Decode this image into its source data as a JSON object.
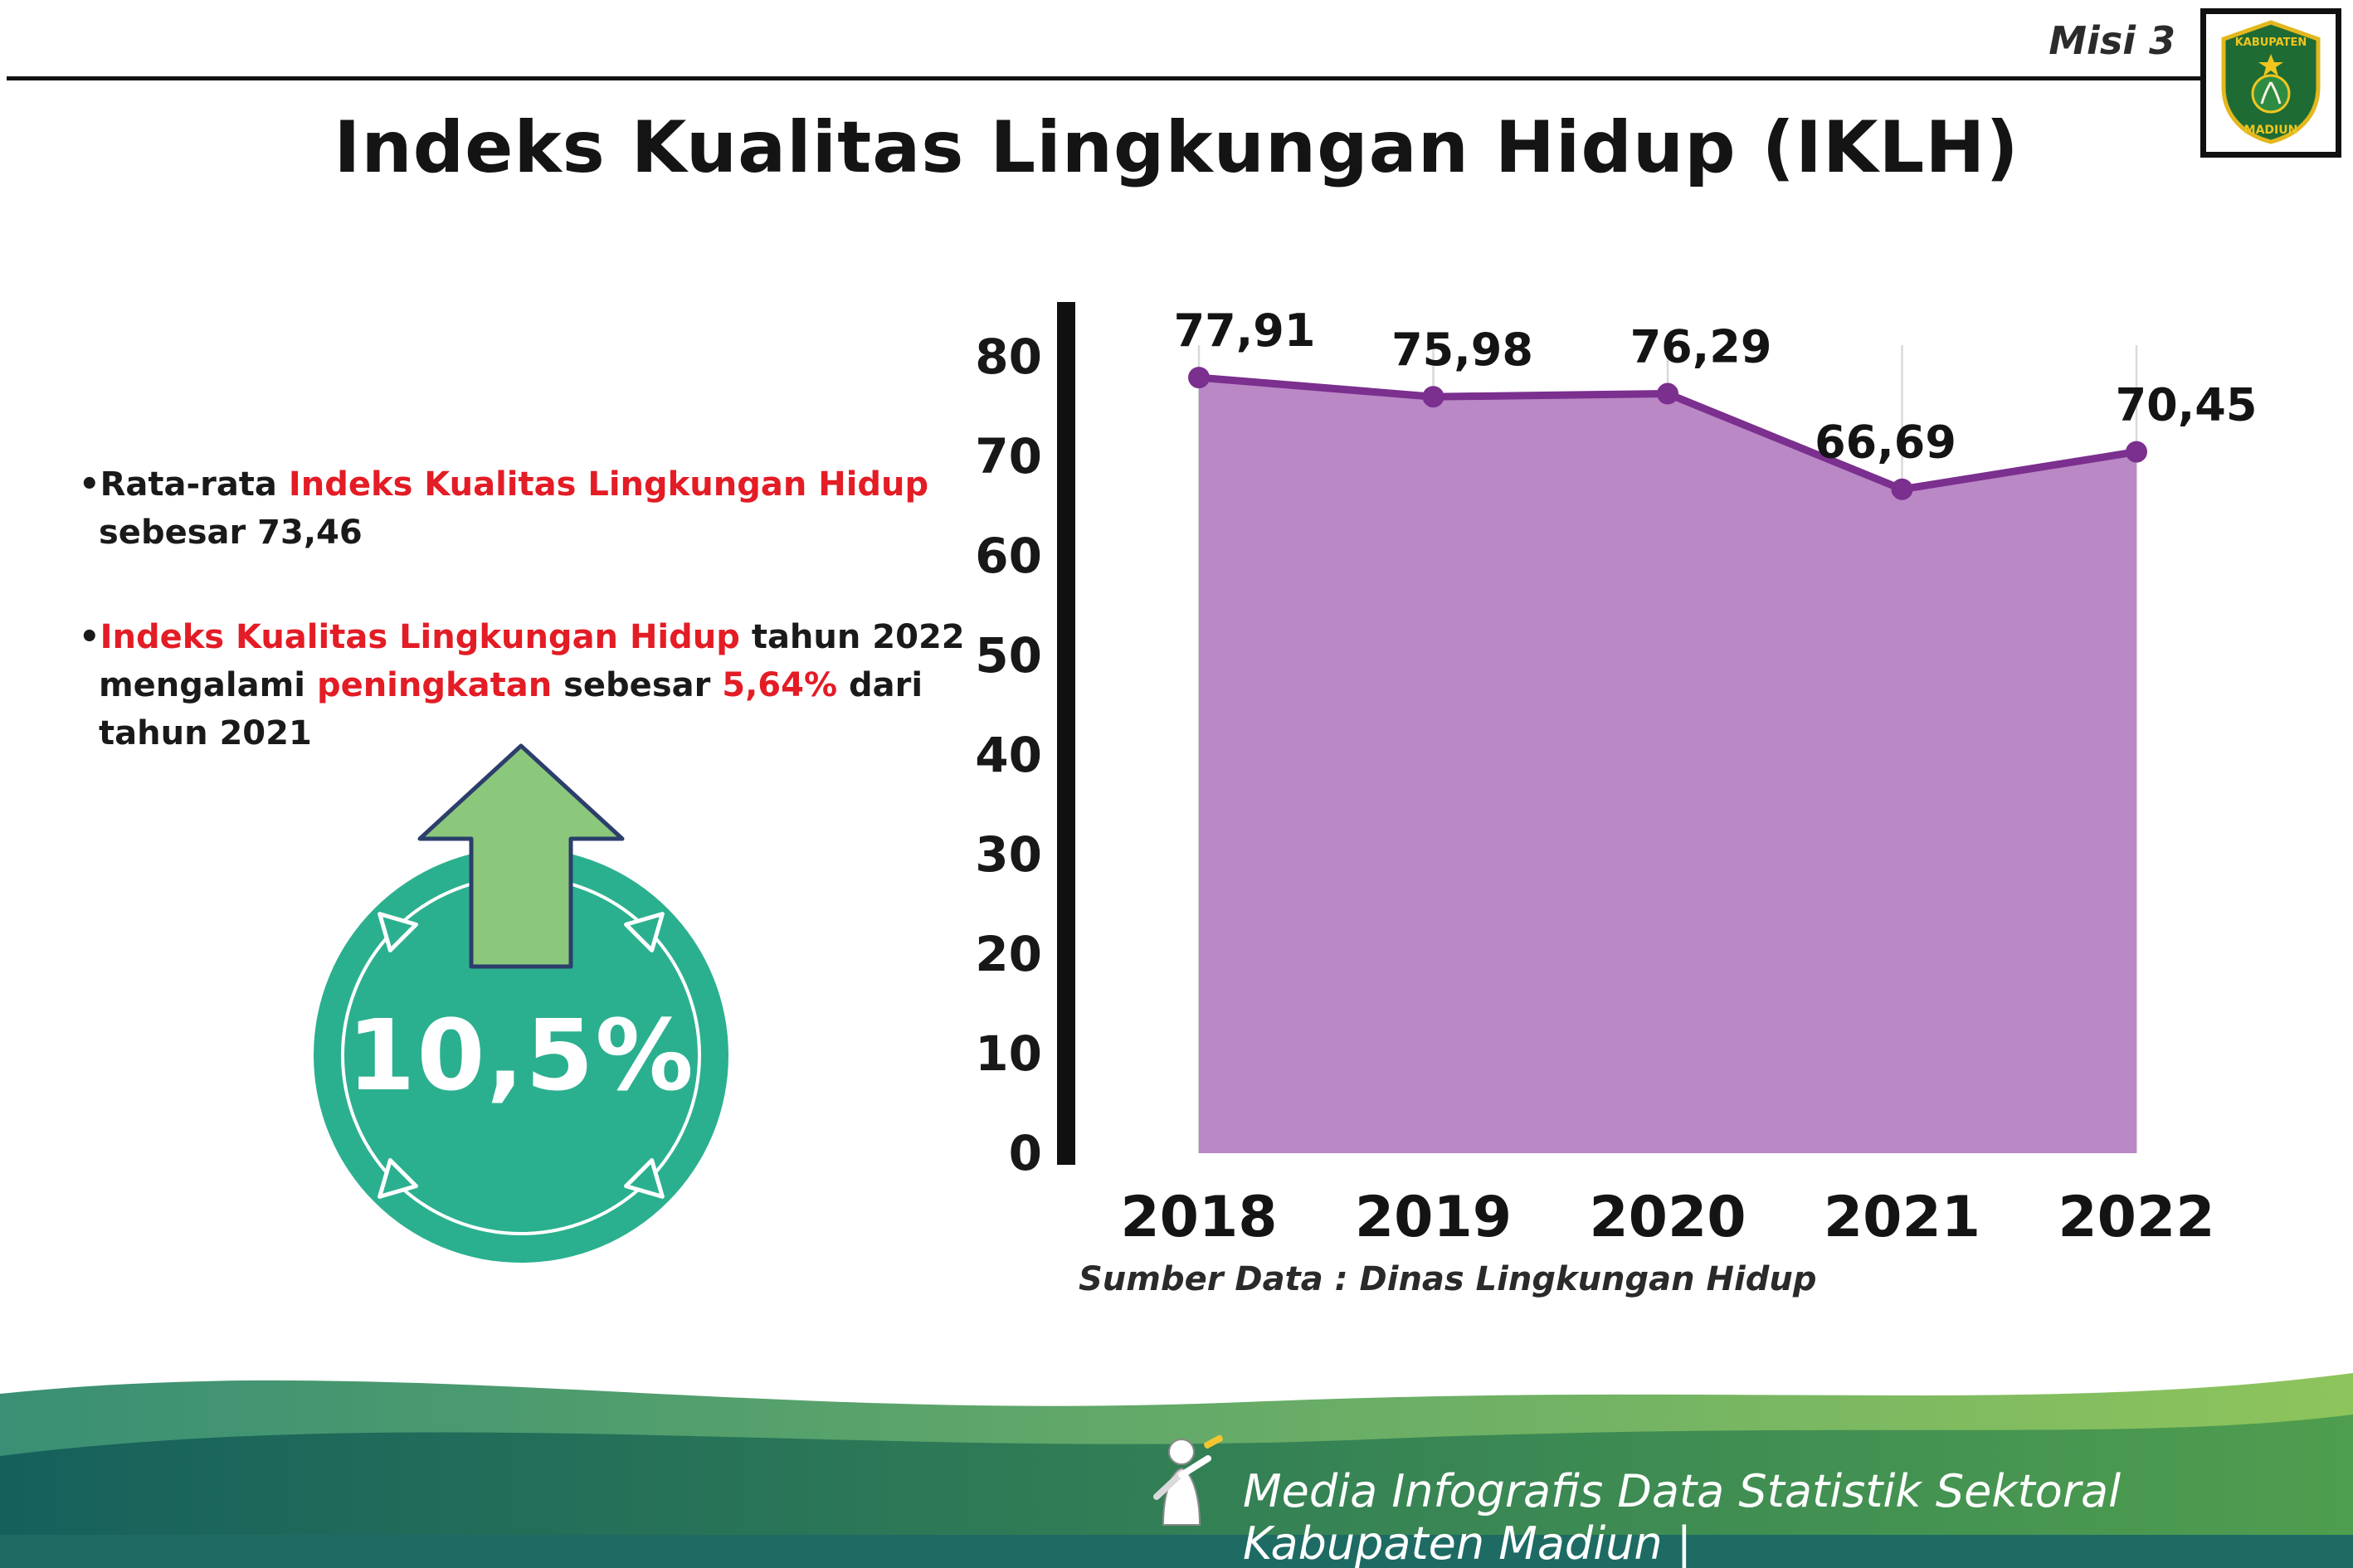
{
  "header": {
    "misi": "Misi 3",
    "title": "Indeks Kualitas Lingkungan Hidup (IKLH)",
    "logo": {
      "line1": "KABUPATEN",
      "line2": "MADIUN"
    }
  },
  "bullets": {
    "b1": {
      "dot": "•",
      "seg_black": "Rata-rata ",
      "seg_red": "Indeks Kualitas Lingkungan Hidup",
      "line2": "sebesar 73,46"
    },
    "b2": {
      "dot": "•",
      "seg_red": "Indeks Kualitas Lingkungan Hidup",
      "seg_black": " tahun 2022",
      "l2_black1": "mengalami ",
      "l2_red1": "peningkatan",
      "l2_black2": " sebesar ",
      "l2_red2": "5,64%",
      "l2_black3": " dari",
      "line3": "tahun 2021"
    }
  },
  "badge": {
    "value": "10,5%"
  },
  "chart_data": {
    "type": "area",
    "categories": [
      "2018",
      "2019",
      "2020",
      "2021",
      "2022"
    ],
    "values": [
      77.91,
      75.98,
      76.29,
      66.69,
      70.45
    ],
    "point_labels": [
      "77,91",
      "75,98",
      "76,29",
      "66,69",
      "70,45"
    ],
    "title": "",
    "xlabel": "",
    "ylabel": "",
    "ylim": [
      0,
      80
    ],
    "yticks": [
      0,
      10,
      20,
      30,
      40,
      50,
      60,
      70,
      80
    ],
    "grid": "vertical",
    "legend": "none",
    "source": "Sumber Data : Dinas Lingkungan Hidup",
    "line_color": "#7b2f8e",
    "fill_color": "#b988c5",
    "point_color": "#7b2f8e"
  },
  "colors": {
    "accent_red": "#e31c25",
    "badge_teal": "#2bb08f",
    "arrow_green": "#8cc87b",
    "footer_dark": "#1e6b64",
    "footer_green": "#57a24f"
  },
  "footer": {
    "text": "Media Infografis Data Statistik Sektoral Kabupaten Madiun |"
  }
}
